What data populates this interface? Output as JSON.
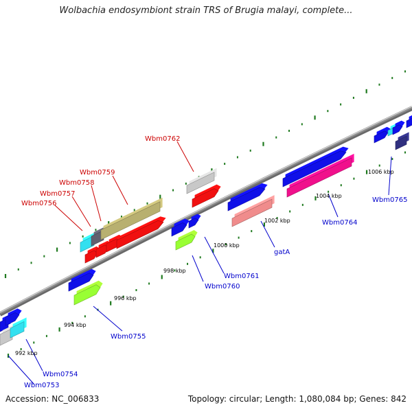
{
  "title": "Wolbachia endosymbiont strain TRS of Brugia malayi, complete...",
  "footer": {
    "accession": "Accession: NC_006833",
    "summary": "Topology: circular; Length: 1,080,084 bp; Genes: 842"
  },
  "colors": {
    "backbone": "#8c8c8c",
    "tick": "#1f7a1f",
    "label_red": "#cc0000",
    "label_blue": "#0000cc",
    "blue": "#1010e8",
    "red": "#f01010",
    "gray": "#c8c8c8",
    "olive": "#b8b070",
    "cyan": "#33e0f0",
    "green": "#99ff33",
    "salmon": "#f08c8c",
    "magenta": "#f0108c",
    "darkgray": "#606070",
    "navy": "#303080"
  },
  "ruler_labels": [
    "992 kbp",
    "994 kbp",
    "996 kbp",
    "998 kbp",
    "1000 kbp",
    "1002 kbp",
    "1004 kbp",
    "1006 kbp"
  ],
  "genes": [
    {
      "label": "Wbm0753",
      "color": "label_blue"
    },
    {
      "label": "Wbm0754",
      "color": "label_blue"
    },
    {
      "label": "Wbm0755",
      "color": "label_blue"
    },
    {
      "label": "Wbm0756",
      "color": "label_red"
    },
    {
      "label": "Wbm0757",
      "color": "label_red"
    },
    {
      "label": "Wbm0758",
      "color": "label_red"
    },
    {
      "label": "Wbm0759",
      "color": "label_red"
    },
    {
      "label": "Wbm0760",
      "color": "label_blue"
    },
    {
      "label": "Wbm0761",
      "color": "label_blue"
    },
    {
      "label": "Wbm0762",
      "color": "label_red"
    },
    {
      "label": "gatA",
      "color": "label_blue"
    },
    {
      "label": "Wbm0764",
      "color": "label_blue"
    },
    {
      "label": "Wbm0765",
      "color": "label_blue"
    }
  ]
}
